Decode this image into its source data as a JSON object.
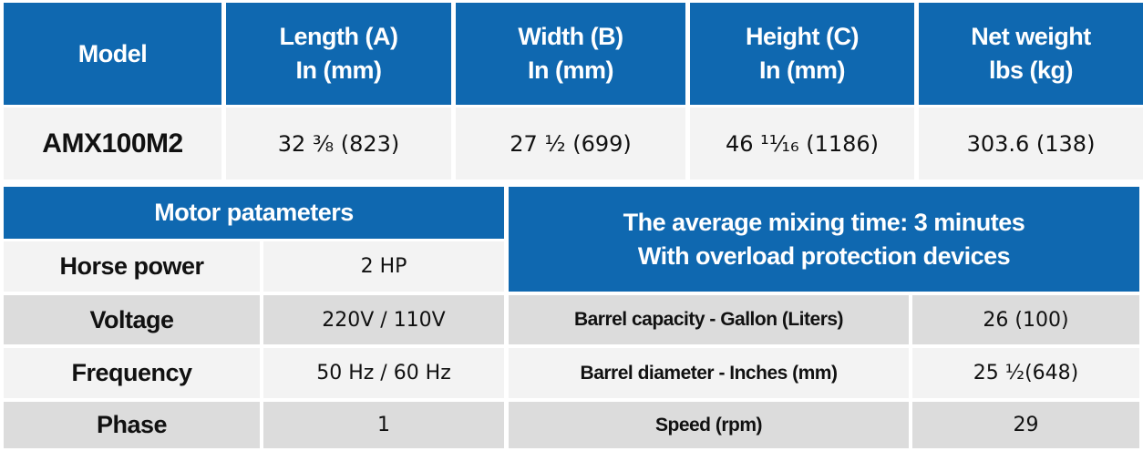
{
  "colors": {
    "header_blue": "#0f68b0",
    "row_light": "#f3f3f3",
    "row_gray": "#dcdcdc"
  },
  "dimensions": {
    "headers": [
      [
        "Model"
      ],
      [
        "Length (A)",
        "In (mm)"
      ],
      [
        "Width (B)",
        "In (mm)"
      ],
      [
        "Height (C)",
        "In (mm)"
      ],
      [
        "Net weight",
        "lbs (kg)"
      ]
    ],
    "row": [
      "AMX100M2",
      "32 ⅜ (823)",
      "27 ½ (699)",
      "46 ¹¹⁄₁₆ (1186)",
      "303.6 (138)"
    ]
  },
  "motor": {
    "title": "Motor patameters",
    "rows": [
      {
        "label": "Horse power",
        "value": "2 HP"
      },
      {
        "label": "Voltage",
        "value": "220V / 110V"
      },
      {
        "label": "Frequency",
        "value": "50 Hz / 60 Hz"
      },
      {
        "label": "Phase",
        "value": "1"
      }
    ]
  },
  "barrel": {
    "title_line1": "The average mixing time: 3 minutes",
    "title_line2": "With overload protection devices",
    "rows": [
      {
        "label": "Barrel capacity - Gallon (Liters)",
        "value": "26 (100)"
      },
      {
        "label": "Barrel diameter - Inches (mm)",
        "value": "25 ½(648)"
      },
      {
        "label": "Speed (rpm)",
        "value": "29"
      }
    ]
  }
}
